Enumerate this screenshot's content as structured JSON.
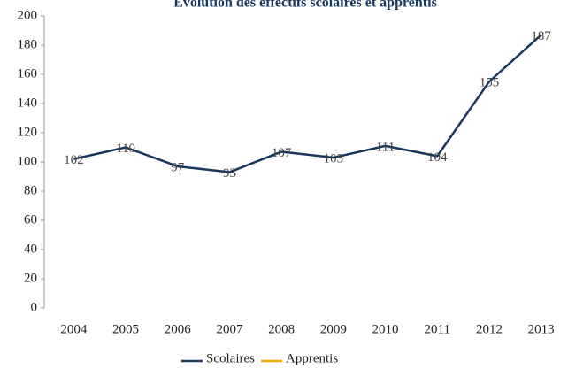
{
  "chart_data": {
    "type": "line",
    "title": "Évolution des effectifs scolaires et apprentis",
    "categories": [
      "2004",
      "2005",
      "2006",
      "2007",
      "2008",
      "2009",
      "2010",
      "2011",
      "2012",
      "2013"
    ],
    "series": [
      {
        "name": "Scolaires",
        "color": "#17375e",
        "values": [
          102,
          110,
          97,
          93,
          107,
          103,
          111,
          104,
          155,
          187
        ]
      },
      {
        "name": "Apprentis",
        "color": "#f0a30a",
        "values": [
          null,
          null,
          null,
          null,
          null,
          null,
          null,
          null,
          null,
          null
        ]
      }
    ],
    "ylim": [
      0,
      200
    ],
    "yticks": [
      0,
      20,
      40,
      60,
      80,
      100,
      120,
      140,
      160,
      180,
      200
    ],
    "grid": false,
    "legend": "bottom"
  }
}
